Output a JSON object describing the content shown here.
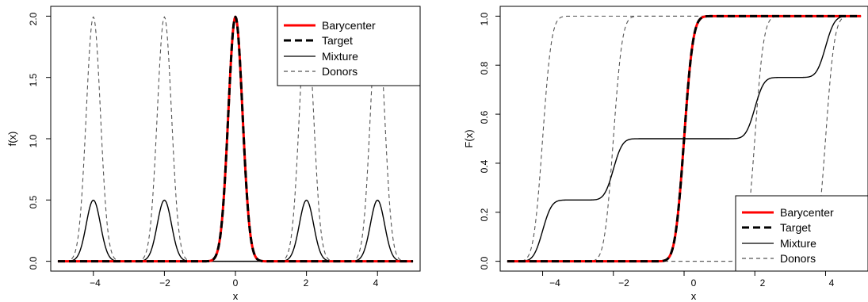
{
  "chart_data": [
    {
      "type": "line",
      "xlabel": "x",
      "ylabel": "f(x)",
      "xlim": [
        -5.2,
        5.2
      ],
      "ylim": [
        -0.08,
        2.08
      ],
      "xticks": [
        -4,
        -2,
        0,
        2,
        4
      ],
      "yticks": [
        0.0,
        0.5,
        1.0,
        1.5,
        2.0
      ],
      "xtick_labels": [
        "−4",
        "−2",
        "0",
        "2",
        "4"
      ],
      "ytick_labels": [
        "0.0",
        "0.5",
        "1.0",
        "1.5",
        "2.0"
      ],
      "grid": false,
      "legend_position": "top-right",
      "x_range": [
        -5,
        5
      ],
      "series": [
        {
          "name": "Barycenter",
          "color": "#ff0000",
          "style": "solid",
          "kind": "density",
          "components": [
            {
              "mu": 0,
              "sd": 0.2,
              "w": 1
            }
          ]
        },
        {
          "name": "Target",
          "color": "#000000",
          "style": "dashed",
          "kind": "density",
          "components": [
            {
              "mu": 0,
              "sd": 0.2,
              "w": 1
            }
          ]
        },
        {
          "name": "Mixture",
          "color": "#000000",
          "style": "solid",
          "kind": "density",
          "components": [
            {
              "mu": -4,
              "sd": 0.2,
              "w": 0.25
            },
            {
              "mu": -2,
              "sd": 0.2,
              "w": 0.25
            },
            {
              "mu": 2,
              "sd": 0.2,
              "w": 0.25
            },
            {
              "mu": 4,
              "sd": 0.2,
              "w": 0.25
            }
          ]
        },
        {
          "name": "Donors",
          "color": "#555555",
          "style": "dashed",
          "kind": "density",
          "group": [
            [
              {
                "mu": -4,
                "sd": 0.2,
                "w": 1
              }
            ],
            [
              {
                "mu": -2,
                "sd": 0.2,
                "w": 1
              }
            ],
            [
              {
                "mu": 2,
                "sd": 0.2,
                "w": 1
              }
            ],
            [
              {
                "mu": 4,
                "sd": 0.2,
                "w": 1
              }
            ]
          ]
        }
      ]
    },
    {
      "type": "line",
      "xlabel": "x",
      "ylabel": "F(x)",
      "xlim": [
        -5.2,
        5.2
      ],
      "ylim": [
        -0.04,
        1.04
      ],
      "xticks": [
        -4,
        -2,
        0,
        2,
        4
      ],
      "yticks": [
        0.0,
        0.2,
        0.4,
        0.6,
        0.8,
        1.0
      ],
      "xtick_labels": [
        "−4",
        "−2",
        "0",
        "2",
        "4"
      ],
      "ytick_labels": [
        "0.0",
        "0.2",
        "0.4",
        "0.6",
        "0.8",
        "1.0"
      ],
      "grid": false,
      "legend_position": "bottom-right",
      "x_range": [
        -5,
        5
      ],
      "series": [
        {
          "name": "Barycenter",
          "color": "#ff0000",
          "style": "solid",
          "kind": "cdf",
          "components": [
            {
              "mu": 0,
              "sd": 0.2,
              "w": 1
            }
          ]
        },
        {
          "name": "Target",
          "color": "#000000",
          "style": "dashed",
          "kind": "cdf",
          "components": [
            {
              "mu": 0,
              "sd": 0.2,
              "w": 1
            }
          ]
        },
        {
          "name": "Mixture",
          "color": "#000000",
          "style": "solid",
          "kind": "cdf",
          "components": [
            {
              "mu": -4,
              "sd": 0.2,
              "w": 0.25
            },
            {
              "mu": -2,
              "sd": 0.2,
              "w": 0.25
            },
            {
              "mu": 2,
              "sd": 0.2,
              "w": 0.25
            },
            {
              "mu": 4,
              "sd": 0.2,
              "w": 0.25
            }
          ]
        },
        {
          "name": "Donors",
          "color": "#555555",
          "style": "dashed",
          "kind": "cdf",
          "group": [
            [
              {
                "mu": -4,
                "sd": 0.2,
                "w": 1
              }
            ],
            [
              {
                "mu": -2,
                "sd": 0.2,
                "w": 1
              }
            ],
            [
              {
                "mu": 2,
                "sd": 0.2,
                "w": 1
              }
            ],
            [
              {
                "mu": 4,
                "sd": 0.2,
                "w": 1
              }
            ]
          ]
        }
      ]
    }
  ]
}
